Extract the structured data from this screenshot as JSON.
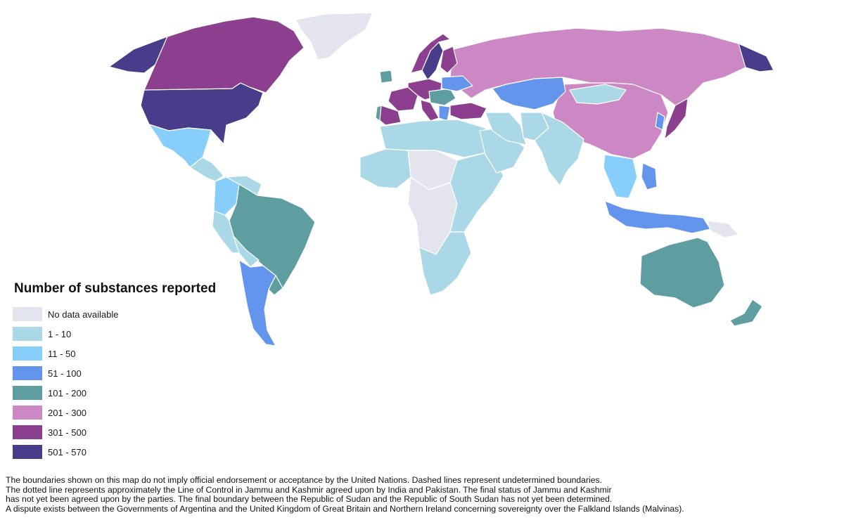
{
  "legend": {
    "title": "Number of substances reported",
    "items": [
      {
        "label": "No data available",
        "color": "#e4e4ee"
      },
      {
        "label": "1 - 10",
        "color": "#aad8e6"
      },
      {
        "label": "11 - 50",
        "color": "#87cefa"
      },
      {
        "label": "51 - 100",
        "color": "#6495ed"
      },
      {
        "label": "101 - 200",
        "color": "#5f9ea0"
      },
      {
        "label": "201 - 300",
        "color": "#cc88c4"
      },
      {
        "label": "301 - 500",
        "color": "#8b3f8e"
      },
      {
        "label": "501 - 570",
        "color": "#483d8b"
      }
    ]
  },
  "footnote": {
    "lines": [
      "The boundaries shown on this map do not imply official endorsement or acceptance by the United Nations. Dashed lines represent undetermined boundaries.",
      "The dotted line represents approximately the Line of Control in Jammu and Kashmir agreed upon by India and Pakistan. The final status of Jammu and Kashmir",
      "has not yet been agreed upon by the parties. The final boundary between the Republic of Sudan and the Republic of South Sudan has not yet been determined.",
      "A dispute exists between the Governments of Argentina and the United Kingdom of Great Britain and Northern Ireland concerning sovereignty over the Falkland Islands (Malvinas)."
    ]
  },
  "regions": [
    {
      "name": "United States",
      "category": "501 - 570"
    },
    {
      "name": "Alaska",
      "category": "501 - 570"
    },
    {
      "name": "Canada",
      "category": "301 - 500"
    },
    {
      "name": "Greenland",
      "category": "No data available"
    },
    {
      "name": "Mexico",
      "category": "11 - 50"
    },
    {
      "name": "Central America",
      "category": "1 - 10"
    },
    {
      "name": "Colombia",
      "category": "11 - 50"
    },
    {
      "name": "Venezuela",
      "category": "1 - 10"
    },
    {
      "name": "Brazil",
      "category": "101 - 200"
    },
    {
      "name": "Peru",
      "category": "1 - 10"
    },
    {
      "name": "Bolivia",
      "category": "1 - 10"
    },
    {
      "name": "Argentina",
      "category": "51 - 100"
    },
    {
      "name": "Uruguay",
      "category": "101 - 200"
    },
    {
      "name": "Russia",
      "category": "201 - 300"
    },
    {
      "name": "China",
      "category": "201 - 300"
    },
    {
      "name": "Kazakhstan",
      "category": "51 - 100"
    },
    {
      "name": "Mongolia",
      "category": "1 - 10"
    },
    {
      "name": "Japan",
      "category": "301 - 500"
    },
    {
      "name": "Korea",
      "category": "51 - 100"
    },
    {
      "name": "Turkey",
      "category": "301 - 500"
    },
    {
      "name": "Sweden",
      "category": "501 - 570"
    },
    {
      "name": "Norway",
      "category": "301 - 500"
    },
    {
      "name": "Finland",
      "category": "301 - 500"
    },
    {
      "name": "France",
      "category": "301 - 500"
    },
    {
      "name": "Spain",
      "category": "301 - 500"
    },
    {
      "name": "Portugal",
      "category": "101 - 200"
    },
    {
      "name": "Ireland",
      "category": "101 - 200"
    },
    {
      "name": "Central Europe",
      "category": "301 - 500"
    },
    {
      "name": "Eastern Europe",
      "category": "101 - 200"
    },
    {
      "name": "Ukraine",
      "category": "51 - 100"
    },
    {
      "name": "Italy",
      "category": "301 - 500"
    },
    {
      "name": "Greece",
      "category": "51 - 100"
    },
    {
      "name": "North Africa",
      "category": "1 - 10"
    },
    {
      "name": "Sahara",
      "category": "No data available"
    },
    {
      "name": "West Africa",
      "category": "1 - 10"
    },
    {
      "name": "Central Africa",
      "category": "No data available"
    },
    {
      "name": "East Africa",
      "category": "1 - 10"
    },
    {
      "name": "Southern Africa",
      "category": "1 - 10"
    },
    {
      "name": "Arabian Peninsula",
      "category": "1 - 10"
    },
    {
      "name": "Iran",
      "category": "1 - 10"
    },
    {
      "name": "Pakistan",
      "category": "1 - 10"
    },
    {
      "name": "India",
      "category": "1 - 10"
    },
    {
      "name": "Southeast Asia",
      "category": "11 - 50"
    },
    {
      "name": "Indonesia",
      "category": "51 - 100"
    },
    {
      "name": "Philippines",
      "category": "51 - 100"
    },
    {
      "name": "Papua New Guinea",
      "category": "No data available"
    },
    {
      "name": "Australia",
      "category": "101 - 200"
    },
    {
      "name": "New Zealand",
      "category": "101 - 200"
    },
    {
      "name": "Russia Far East",
      "category": "501 - 570"
    }
  ]
}
